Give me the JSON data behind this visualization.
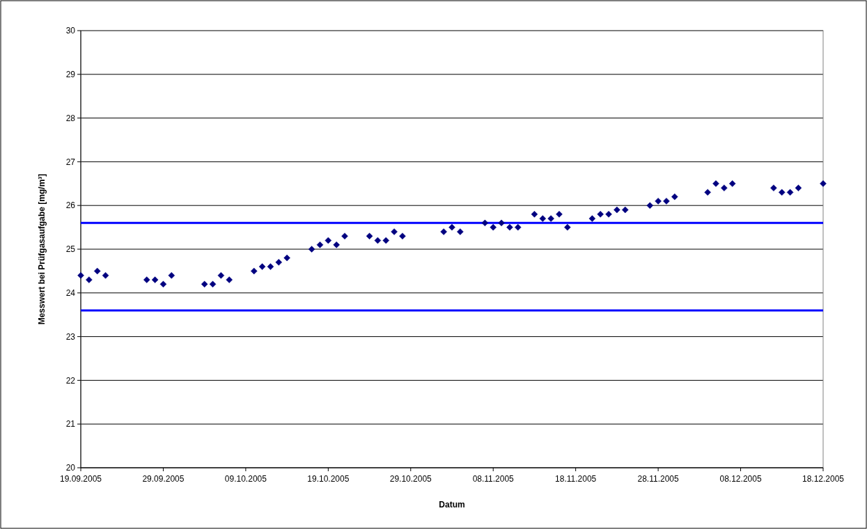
{
  "chart_data": {
    "type": "scatter",
    "xlabel": "Datum",
    "ylabel": "Messwert bei Prüfgasaufgabe [mg/m³]",
    "x": [
      "2005-09-19",
      "2005-09-20",
      "2005-09-21",
      "2005-09-22",
      "2005-09-27",
      "2005-09-28",
      "2005-09-29",
      "2005-09-30",
      "2005-10-04",
      "2005-10-05",
      "2005-10-06",
      "2005-10-07",
      "2005-10-10",
      "2005-10-11",
      "2005-10-12",
      "2005-10-13",
      "2005-10-14",
      "2005-10-17",
      "2005-10-18",
      "2005-10-19",
      "2005-10-20",
      "2005-10-21",
      "2005-10-24",
      "2005-10-25",
      "2005-10-26",
      "2005-10-27",
      "2005-10-28",
      "2005-11-02",
      "2005-11-03",
      "2005-11-04",
      "2005-11-07",
      "2005-11-08",
      "2005-11-09",
      "2005-11-10",
      "2005-11-11",
      "2005-11-13",
      "2005-11-14",
      "2005-11-15",
      "2005-11-16",
      "2005-11-17",
      "2005-11-20",
      "2005-11-21",
      "2005-11-22",
      "2005-11-23",
      "2005-11-24",
      "2005-11-27",
      "2005-11-28",
      "2005-11-29",
      "2005-11-30",
      "2005-12-04",
      "2005-12-05",
      "2005-12-06",
      "2005-12-07",
      "2005-12-12",
      "2005-12-13",
      "2005-12-14",
      "2005-12-15",
      "2005-12-18"
    ],
    "series": [
      {
        "color": "#000080",
        "values": [
          24.4,
          24.3,
          24.5,
          24.4,
          24.3,
          24.3,
          24.2,
          24.4,
          24.2,
          24.2,
          24.4,
          24.3,
          24.5,
          24.6,
          24.6,
          24.7,
          24.8,
          25.0,
          25.1,
          25.2,
          25.1,
          25.3,
          25.3,
          25.2,
          25.2,
          25.4,
          25.3,
          25.4,
          25.5,
          25.4,
          25.6,
          25.5,
          25.6,
          25.5,
          25.5,
          25.8,
          25.7,
          25.7,
          25.8,
          25.5,
          25.7,
          25.8,
          25.8,
          25.9,
          25.9,
          26.0,
          26.1,
          26.1,
          26.2,
          26.3,
          26.5,
          26.4,
          26.5,
          26.4,
          26.3,
          26.3,
          26.4,
          26.5
        ]
      }
    ],
    "marker": "diamond",
    "grid": "y",
    "ylim": [
      20,
      30
    ],
    "yticks": [
      20,
      21,
      22,
      23,
      24,
      25,
      26,
      27,
      28,
      29,
      30
    ],
    "xlim": [
      "2005-09-19",
      "2005-12-18"
    ],
    "xticks": [
      {
        "value": "2005-09-19",
        "label": "19.09.2005"
      },
      {
        "value": "2005-09-29",
        "label": "29.09.2005"
      },
      {
        "value": "2005-10-09",
        "label": "09.10.2005"
      },
      {
        "value": "2005-10-19",
        "label": "19.10.2005"
      },
      {
        "value": "2005-10-29",
        "label": "29.10.2005"
      },
      {
        "value": "2005-11-08",
        "label": "08.11.2005"
      },
      {
        "value": "2005-11-18",
        "label": "18.11.2005"
      },
      {
        "value": "2005-11-28",
        "label": "28.11.2005"
      },
      {
        "value": "2005-12-08",
        "label": "08.12.2005"
      },
      {
        "value": "2005-12-18",
        "label": "18.12.2005"
      }
    ],
    "ref_lines": [
      {
        "axis": "y",
        "value": 25.6,
        "color": "#0000ff"
      },
      {
        "axis": "y",
        "value": 23.6,
        "color": "#0000ff"
      }
    ]
  }
}
